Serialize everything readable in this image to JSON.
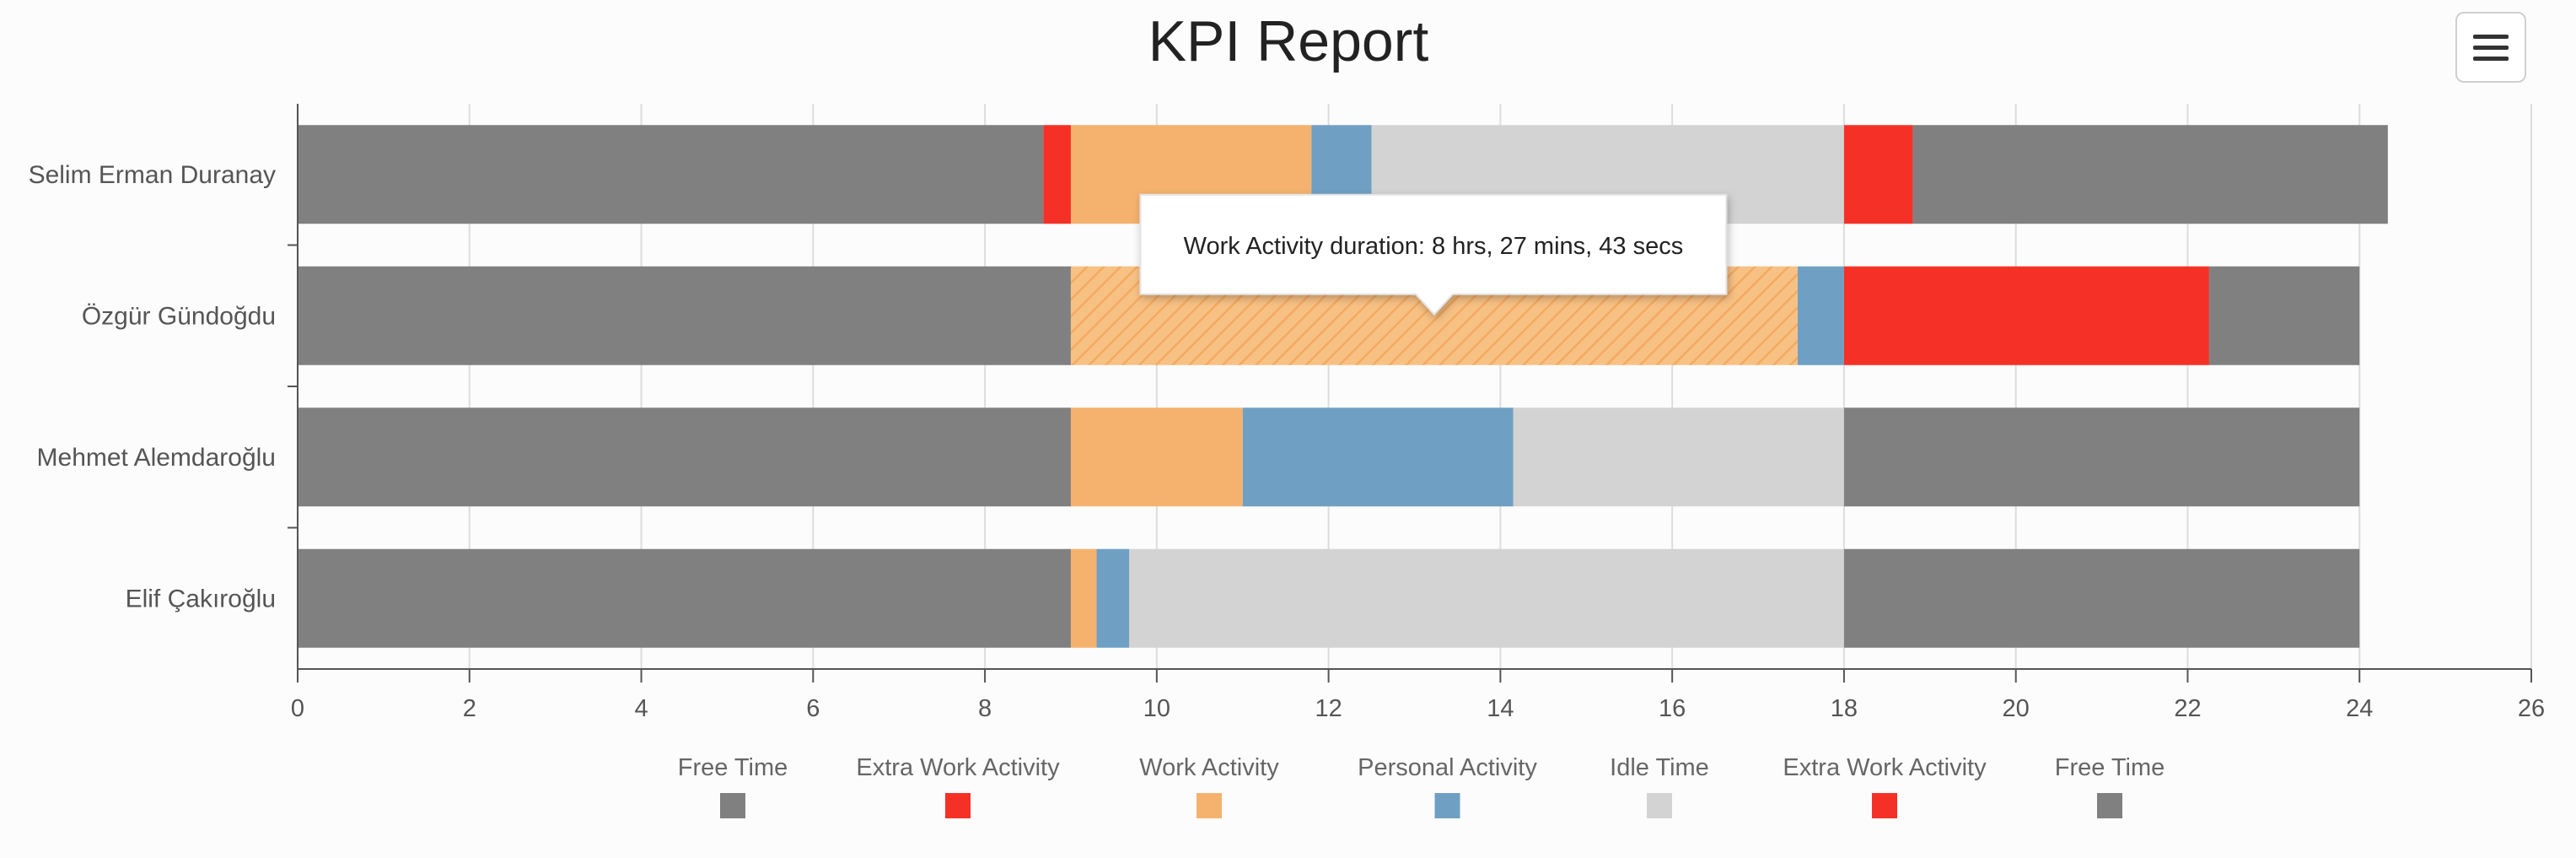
{
  "chart_data": {
    "type": "bar",
    "orientation": "horizontal-stacked-timeline",
    "title": "KPI Report",
    "categories": [
      "Selim Erman Duranay",
      "Özgür Gündoğdu",
      "Mehmet Alemdaroğlu",
      "Elif Çakıroğlu"
    ],
    "xlim": [
      0,
      26
    ],
    "xticks": [
      0,
      2,
      4,
      6,
      8,
      10,
      12,
      14,
      16,
      18,
      20,
      22,
      24,
      26
    ],
    "grid": true,
    "legend_position": "bottom",
    "legend": [
      {
        "name": "Free Time",
        "color": "#808080"
      },
      {
        "name": "Extra Work Activity",
        "color": "#f53127"
      },
      {
        "name": "Work Activity",
        "color": "#f5b26e"
      },
      {
        "name": "Personal Activity",
        "color": "#6fa0c4"
      },
      {
        "name": "Idle Time",
        "color": "#d3d3d3"
      },
      {
        "name": "Extra Work Activity",
        "color": "#f53127"
      },
      {
        "name": "Free Time",
        "color": "#808080"
      }
    ],
    "rows": [
      {
        "name": "Selim Erman Duranay",
        "segments": [
          {
            "series": "Free Time",
            "start": 0,
            "end": 8.68
          },
          {
            "series": "Extra Work Activity",
            "start": 8.68,
            "end": 9.0
          },
          {
            "series": "Work Activity",
            "start": 9.0,
            "end": 11.8
          },
          {
            "series": "Personal Activity",
            "start": 11.8,
            "end": 12.5
          },
          {
            "series": "Idle Time",
            "start": 12.5,
            "end": 18.0
          },
          {
            "series": "Extra Work Activity",
            "start": 18.0,
            "end": 18.8
          },
          {
            "series": "Free Time",
            "start": 18.8,
            "end": 24.33
          }
        ]
      },
      {
        "name": "Özgür Gündoğdu",
        "segments": [
          {
            "series": "Free Time",
            "start": 0,
            "end": 9.0
          },
          {
            "series": "Work Activity",
            "start": 9.0,
            "end": 17.46,
            "hovered": true
          },
          {
            "series": "Personal Activity",
            "start": 17.46,
            "end": 18.0
          },
          {
            "series": "Extra Work Activity",
            "start": 18.0,
            "end": 22.25
          },
          {
            "series": "Free Time",
            "start": 22.25,
            "end": 24.0
          }
        ]
      },
      {
        "name": "Mehmet Alemdaroğlu",
        "segments": [
          {
            "series": "Free Time",
            "start": 0,
            "end": 9.0
          },
          {
            "series": "Work Activity",
            "start": 9.0,
            "end": 11.0
          },
          {
            "series": "Personal Activity",
            "start": 11.0,
            "end": 14.15
          },
          {
            "series": "Idle Time",
            "start": 14.15,
            "end": 18.0
          },
          {
            "series": "Free Time",
            "start": 18.0,
            "end": 24.0
          }
        ]
      },
      {
        "name": "Elif Çakıroğlu",
        "segments": [
          {
            "series": "Free Time",
            "start": 0,
            "end": 9.0
          },
          {
            "series": "Work Activity",
            "start": 9.0,
            "end": 9.3
          },
          {
            "series": "Personal Activity",
            "start": 9.3,
            "end": 9.68
          },
          {
            "series": "Idle Time",
            "start": 9.68,
            "end": 18.0
          },
          {
            "series": "Free Time",
            "start": 18.0,
            "end": 24.0
          }
        ]
      }
    ],
    "tooltip": {
      "text": "Work Activity duration: 8 hrs, 27 mins, 43 secs"
    }
  },
  "menu": {
    "icon": "hamburger-menu-icon"
  }
}
